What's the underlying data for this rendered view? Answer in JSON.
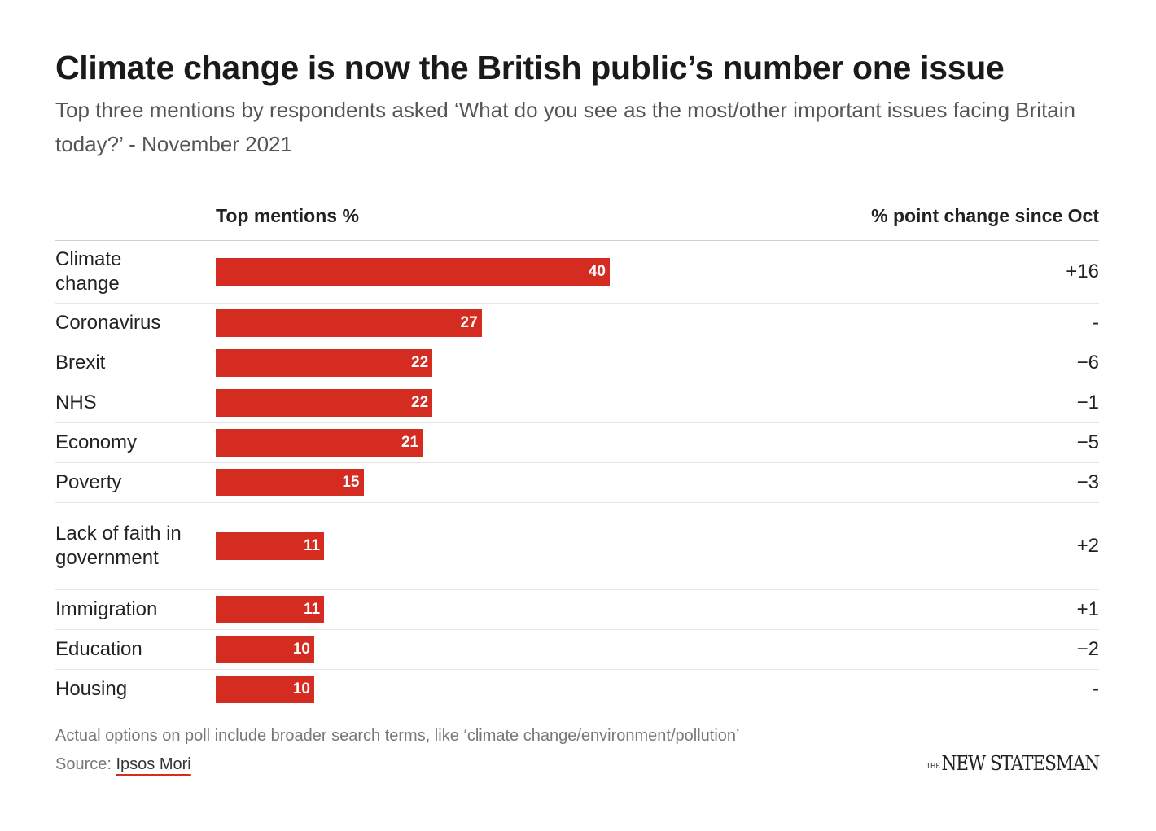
{
  "header": {
    "title": "Climate change is now the British public’s number one issue",
    "subtitle": "Top three mentions by respondents asked ‘What do you see as the most/other important issues facing Britain today?’ - November 2021"
  },
  "columns": {
    "left": "Top mentions %",
    "right": "% point change since Oct"
  },
  "chart_data": {
    "type": "bar",
    "orientation": "horizontal",
    "title": "Climate change is now the British public’s number one issue",
    "xlabel": "Top mentions %",
    "xlim": [
      0,
      100
    ],
    "categories": [
      "Climate change",
      "Coronavirus",
      "Brexit",
      "NHS",
      "Economy",
      "Poverty",
      "Lack of faith in government",
      "Immigration",
      "Education",
      "Housing"
    ],
    "values": [
      40,
      27,
      22,
      22,
      21,
      15,
      11,
      11,
      10,
      10
    ],
    "value_labels": [
      "40",
      "27",
      "22",
      "22",
      "21",
      "15",
      "11",
      "11",
      "10",
      "10"
    ],
    "changes": [
      "+16",
      "-",
      "−6",
      "−1",
      "−5",
      "−3",
      "+2",
      "+1",
      "−2",
      "-"
    ],
    "bar_color": "#d42c20"
  },
  "footer": {
    "note": "Actual options on poll include broader search terms, like ‘climate change/environment/pollution’",
    "source_label": "Source: ",
    "source_link": "Ipsos Mori",
    "logo_small": "THE",
    "logo_main": "NEW STATESMAN"
  }
}
